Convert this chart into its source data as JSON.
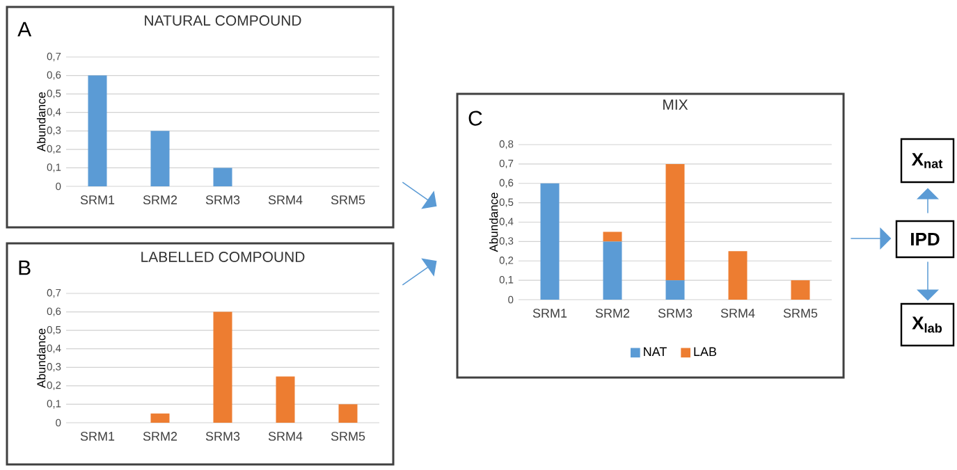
{
  "chart_data": [
    {
      "type": "bar",
      "title": "NATURAL COMPOUND",
      "annotations": [
        "A"
      ],
      "ylabel": "Abundance",
      "categories": [
        "SRM1",
        "SRM2",
        "SRM3",
        "SRM4",
        "SRM5"
      ],
      "values": [
        0.6,
        0.3,
        0.1,
        0,
        0
      ],
      "color": "#5b9bd5",
      "ylim": [
        0,
        0.7
      ],
      "yticks": [
        0,
        {
          "value": 0.1,
          "label": "0,1"
        },
        {
          "value": 0.2,
          "label": "0,2"
        },
        {
          "value": 0.3,
          "label": "0,3"
        },
        {
          "value": 0.4,
          "label": "0,4"
        },
        {
          "value": 0.5,
          "label": "0,5"
        },
        {
          "value": 0.6,
          "label": "0,6"
        },
        {
          "value": 0.7,
          "label": "0,7"
        }
      ],
      "grid": "y"
    },
    {
      "type": "bar",
      "title": "LABELLED COMPOUND",
      "annotations": [
        "B"
      ],
      "ylabel": "Abundance",
      "categories": [
        "SRM1",
        "SRM2",
        "SRM3",
        "SRM4",
        "SRM5"
      ],
      "values": [
        0,
        0.05,
        0.6,
        0.25,
        0.1
      ],
      "color": "#ed7d31",
      "ylim": [
        0,
        0.7
      ],
      "yticks": [
        0,
        {
          "value": 0.1,
          "label": "0,1"
        },
        {
          "value": 0.2,
          "label": "0,2"
        },
        {
          "value": 0.3,
          "label": "0,3"
        },
        {
          "value": 0.4,
          "label": "0,4"
        },
        {
          "value": 0.5,
          "label": "0,5"
        },
        {
          "value": 0.6,
          "label": "0,6"
        },
        {
          "value": 0.7,
          "label": "0,7"
        }
      ],
      "grid": "y"
    },
    {
      "type": "bar",
      "title": "MIX",
      "annotations": [
        "C"
      ],
      "ylabel": "Abundance",
      "categories": [
        "SRM1",
        "SRM2",
        "SRM3",
        "SRM4",
        "SRM5"
      ],
      "stacked": true,
      "legend": "bottom",
      "series": [
        {
          "name": "NAT",
          "color": "#5b9bd5",
          "values": [
            0.6,
            0.3,
            0.1,
            0,
            0
          ]
        },
        {
          "name": "LAB",
          "color": "#ed7d31",
          "values": [
            0,
            0.05,
            0.6,
            0.25,
            0.1
          ]
        }
      ],
      "ylim": [
        0,
        0.8
      ],
      "yticks": [
        0,
        {
          "value": 0.1,
          "label": "0,1"
        },
        {
          "value": 0.2,
          "label": "0,2"
        },
        {
          "value": 0.3,
          "label": "0,3"
        },
        {
          "value": 0.4,
          "label": "0,4"
        },
        {
          "value": 0.5,
          "label": "0,5"
        },
        {
          "value": 0.6,
          "label": "0,6"
        },
        {
          "value": 0.7,
          "label": "0,7"
        },
        {
          "value": 0.8,
          "label": "0,8"
        }
      ],
      "grid": "y"
    },
    {
      "type": "other",
      "annotations": [
        "X$_{nat}$",
        "IPD",
        "X$_{lab}$"
      ]
    }
  ]
}
